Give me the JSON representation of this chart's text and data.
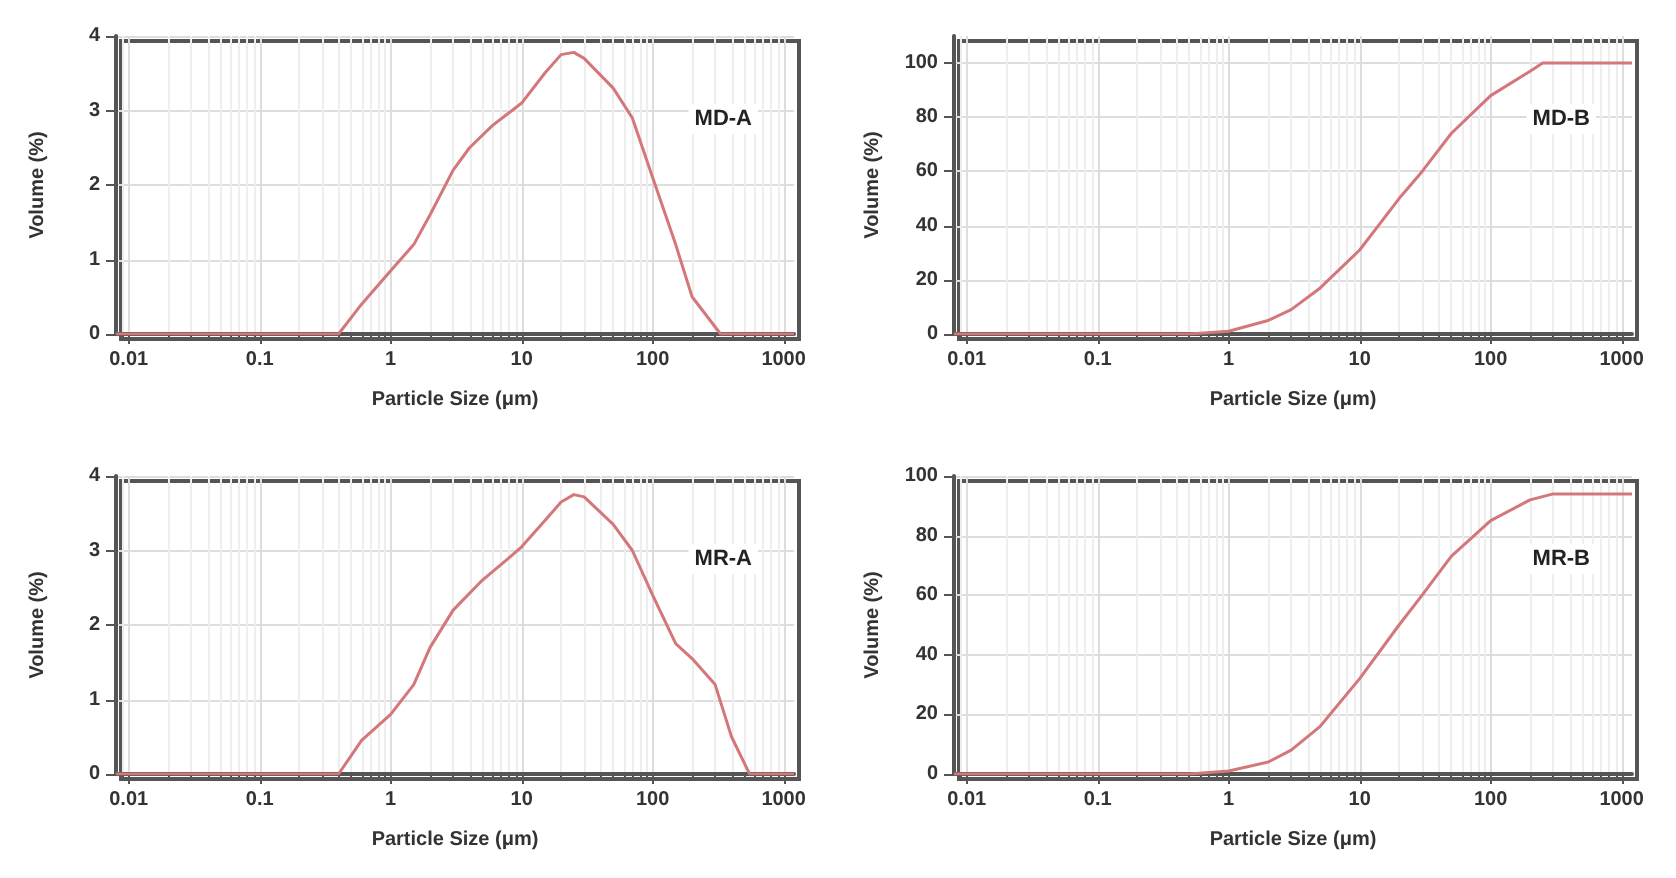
{
  "chart_data": [
    {
      "type": "line",
      "xlabel": "Particle Size (μm)",
      "ylabel": "Volume (%)",
      "annotations": [
        "MD-A"
      ],
      "log": "x",
      "grid": true,
      "xlim": [
        0.008,
        1200
      ],
      "xticks": [
        0.01,
        0.1,
        1,
        10,
        100,
        1000
      ],
      "ylim": [
        0,
        4
      ],
      "yticks": [
        0,
        1,
        2,
        3,
        4
      ],
      "series": [
        {
          "color": "#d4777a",
          "x": [
            0.008,
            0.4,
            0.6,
            1,
            1.5,
            2,
            3,
            4,
            6,
            10,
            15,
            20,
            25,
            30,
            50,
            70,
            100,
            150,
            200,
            330,
            1200
          ],
          "values": [
            0,
            0,
            0.4,
            0.85,
            1.2,
            1.6,
            2.2,
            2.5,
            2.8,
            3.1,
            3.5,
            3.75,
            3.78,
            3.7,
            3.3,
            2.9,
            2.1,
            1.2,
            0.5,
            0,
            0
          ]
        }
      ]
    },
    {
      "type": "line",
      "xlabel": "Particle Size (μm)",
      "ylabel": "Volume (%)",
      "annotations": [
        "MD-B"
      ],
      "log": "x",
      "grid": true,
      "xlim": [
        0.008,
        1200
      ],
      "xticks": [
        0.01,
        0.1,
        1,
        10,
        100,
        1000
      ],
      "ylim": [
        0,
        110
      ],
      "yticks": [
        0,
        20,
        40,
        60,
        80,
        100
      ],
      "series": [
        {
          "color": "#d4777a",
          "x": [
            0.008,
            0.5,
            1,
            2,
            3,
            5,
            10,
            20,
            30,
            50,
            100,
            200,
            250,
            1200
          ],
          "values": [
            0,
            0,
            1,
            5,
            9,
            17,
            31,
            50,
            60,
            74,
            88,
            97,
            100,
            100
          ]
        }
      ]
    },
    {
      "type": "line",
      "xlabel": "Particle Size (μm)",
      "ylabel": "Volume (%)",
      "annotations": [
        "MR-A"
      ],
      "log": "x",
      "grid": true,
      "xlim": [
        0.008,
        1200
      ],
      "xticks": [
        0.01,
        0.1,
        1,
        10,
        100,
        1000
      ],
      "ylim": [
        0,
        4
      ],
      "yticks": [
        0,
        1,
        2,
        3,
        4
      ],
      "series": [
        {
          "color": "#d4777a",
          "x": [
            0.008,
            0.4,
            0.6,
            1,
            1.5,
            2,
            3,
            5,
            8,
            10,
            15,
            20,
            25,
            30,
            50,
            70,
            100,
            150,
            200,
            300,
            400,
            550,
            1200
          ],
          "values": [
            0,
            0,
            0.45,
            0.8,
            1.2,
            1.7,
            2.2,
            2.6,
            2.9,
            3.05,
            3.4,
            3.65,
            3.75,
            3.72,
            3.35,
            3,
            2.4,
            1.75,
            1.55,
            1.2,
            0.5,
            0,
            0
          ]
        }
      ]
    },
    {
      "type": "line",
      "xlabel": "Particle Size (μm)",
      "ylabel": "Volume (%)",
      "annotations": [
        "MR-B"
      ],
      "log": "x",
      "grid": true,
      "xlim": [
        0.008,
        1200
      ],
      "xticks": [
        0.01,
        0.1,
        1,
        10,
        100,
        1000
      ],
      "ylim": [
        0,
        100
      ],
      "yticks": [
        0,
        20,
        40,
        60,
        80,
        100
      ],
      "series": [
        {
          "color": "#d4777a",
          "x": [
            0.008,
            0.5,
            1,
            2,
            3,
            5,
            10,
            20,
            30,
            50,
            100,
            200,
            300,
            1200
          ],
          "values": [
            0,
            0,
            1,
            4,
            8,
            16,
            32,
            50,
            60,
            73,
            85,
            92,
            94,
            94
          ]
        }
      ]
    }
  ]
}
